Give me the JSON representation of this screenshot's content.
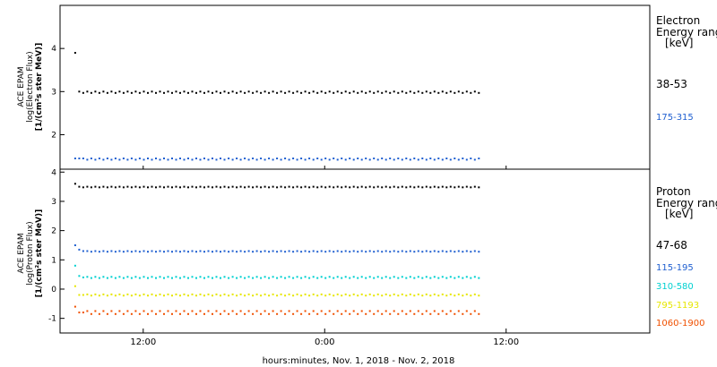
{
  "chart_data": [
    {
      "type": "scatter",
      "panel": "electron",
      "ylabel_lines": [
        "ACE EPAM",
        "log(Electron Flux)",
        "[1/(cm²s ster MeV)]"
      ],
      "ylim": [
        1.2,
        5.0
      ],
      "yticks": [
        "2",
        "3",
        "4"
      ],
      "legend_title_lines": [
        "Electron",
        "Energy range",
        "[keV]"
      ],
      "series": [
        {
          "name": "38-53",
          "color": "#000000",
          "values": [
            3.9,
            3.0,
            2.97,
            3.0,
            2.97,
            3.0,
            2.97,
            3.0,
            2.97,
            3.0,
            2.97,
            3.0,
            2.97,
            3.0,
            2.97,
            3.0,
            2.97,
            3.0,
            2.97,
            3.0,
            2.97,
            3.0,
            2.97,
            3.0,
            2.97,
            3.0,
            2.97,
            3.0,
            2.97,
            3.0,
            2.97,
            3.0,
            2.97,
            3.0,
            2.97,
            3.0,
            2.97,
            3.0,
            2.97,
            3.0,
            2.97,
            3.0,
            2.97,
            3.0,
            2.97,
            3.0,
            2.97,
            3.0,
            2.97,
            3.0,
            2.97,
            3.0,
            2.97,
            3.0,
            2.97,
            3.0,
            2.97,
            3.0,
            2.97,
            3.0,
            2.97,
            3.0,
            2.97,
            3.0,
            2.97,
            3.0,
            2.97,
            3.0,
            2.97,
            3.0,
            2.97,
            3.0,
            2.97,
            3.0,
            2.97,
            3.0,
            2.97,
            3.0,
            2.97,
            3.0,
            2.97,
            3.0,
            2.97,
            3.0,
            2.97,
            3.0,
            2.97,
            3.0,
            2.97,
            3.0,
            2.97,
            3.0,
            2.97,
            3.0,
            2.97,
            3.0,
            2.97,
            3.0,
            2.97,
            3.0,
            2.97
          ]
        },
        {
          "name": "175-315",
          "color": "#1f5fd0",
          "values": [
            1.45,
            1.45,
            1.45,
            1.42,
            1.45,
            1.42,
            1.45,
            1.42,
            1.45,
            1.42,
            1.45,
            1.42,
            1.45,
            1.42,
            1.45,
            1.42,
            1.45,
            1.42,
            1.45,
            1.42,
            1.45,
            1.42,
            1.45,
            1.42,
            1.45,
            1.42,
            1.45,
            1.42,
            1.45,
            1.42,
            1.45,
            1.42,
            1.45,
            1.42,
            1.45,
            1.42,
            1.45,
            1.42,
            1.45,
            1.42,
            1.45,
            1.42,
            1.45,
            1.42,
            1.45,
            1.42,
            1.45,
            1.42,
            1.45,
            1.42,
            1.45,
            1.42,
            1.45,
            1.42,
            1.45,
            1.42,
            1.45,
            1.42,
            1.45,
            1.42,
            1.45,
            1.42,
            1.45,
            1.42,
            1.45,
            1.42,
            1.45,
            1.42,
            1.45,
            1.42,
            1.45,
            1.42,
            1.45,
            1.42,
            1.45,
            1.42,
            1.45,
            1.42,
            1.45,
            1.42,
            1.45,
            1.42,
            1.45,
            1.42,
            1.45,
            1.42,
            1.45,
            1.42,
            1.45,
            1.42,
            1.45,
            1.42,
            1.45,
            1.42,
            1.45,
            1.42,
            1.45,
            1.42,
            1.45,
            1.42,
            1.45
          ]
        }
      ]
    },
    {
      "type": "scatter",
      "panel": "proton",
      "ylabel_lines": [
        "ACE EPAM",
        "log(Proton Flux)",
        "[1/(cm²s ster MeV)]"
      ],
      "ylim": [
        -1.5,
        4.1
      ],
      "yticks": [
        "-1",
        "0",
        "1",
        "2",
        "3",
        "4"
      ],
      "legend_title_lines": [
        "Proton",
        "Energy range",
        "[keV]"
      ],
      "series": [
        {
          "name": "47-68",
          "color": "#000000",
          "values": [
            3.6,
            3.5,
            3.48,
            3.5,
            3.48,
            3.5,
            3.48,
            3.5,
            3.48,
            3.5,
            3.48,
            3.5,
            3.48,
            3.5,
            3.48,
            3.5,
            3.48,
            3.5,
            3.48,
            3.5,
            3.48,
            3.5,
            3.48,
            3.5,
            3.48,
            3.5,
            3.48,
            3.5,
            3.48,
            3.5,
            3.48,
            3.5,
            3.48,
            3.5,
            3.48,
            3.5,
            3.48,
            3.5,
            3.48,
            3.5,
            3.48,
            3.5,
            3.48,
            3.5,
            3.48,
            3.5,
            3.48,
            3.5,
            3.48,
            3.5,
            3.48,
            3.5,
            3.48,
            3.5,
            3.48,
            3.5,
            3.48,
            3.5,
            3.48,
            3.5,
            3.48,
            3.5,
            3.48,
            3.5,
            3.48,
            3.5,
            3.48,
            3.5,
            3.48,
            3.5,
            3.48,
            3.5,
            3.48,
            3.5,
            3.48,
            3.5,
            3.48,
            3.5,
            3.48,
            3.5,
            3.48,
            3.5,
            3.48,
            3.5,
            3.48,
            3.5,
            3.48,
            3.5,
            3.48,
            3.5,
            3.48,
            3.5,
            3.48,
            3.5,
            3.48,
            3.5,
            3.48,
            3.5,
            3.48,
            3.5,
            3.48
          ]
        },
        {
          "name": "115-195",
          "color": "#1f5fd0",
          "values": [
            1.5,
            1.35,
            1.3,
            1.3,
            1.28,
            1.3,
            1.28,
            1.3,
            1.28,
            1.3,
            1.28,
            1.3,
            1.28,
            1.3,
            1.28,
            1.3,
            1.28,
            1.3,
            1.28,
            1.3,
            1.28,
            1.3,
            1.28,
            1.3,
            1.28,
            1.3,
            1.28,
            1.3,
            1.28,
            1.3,
            1.28,
            1.3,
            1.28,
            1.3,
            1.28,
            1.3,
            1.28,
            1.3,
            1.28,
            1.3,
            1.28,
            1.3,
            1.28,
            1.3,
            1.28,
            1.3,
            1.28,
            1.3,
            1.28,
            1.3,
            1.28,
            1.3,
            1.28,
            1.3,
            1.28,
            1.3,
            1.28,
            1.3,
            1.28,
            1.3,
            1.28,
            1.3,
            1.28,
            1.3,
            1.28,
            1.3,
            1.28,
            1.3,
            1.28,
            1.3,
            1.28,
            1.3,
            1.28,
            1.3,
            1.28,
            1.3,
            1.28,
            1.3,
            1.28,
            1.3,
            1.28,
            1.3,
            1.28,
            1.3,
            1.28,
            1.3,
            1.28,
            1.3,
            1.28,
            1.3,
            1.28,
            1.3,
            1.28,
            1.3,
            1.28,
            1.3,
            1.28,
            1.3,
            1.28,
            1.3,
            1.28
          ]
        },
        {
          "name": "310-580",
          "color": "#00d0d0",
          "values": [
            0.8,
            0.45,
            0.4,
            0.42,
            0.38,
            0.42,
            0.38,
            0.42,
            0.38,
            0.42,
            0.38,
            0.42,
            0.38,
            0.42,
            0.38,
            0.42,
            0.38,
            0.42,
            0.38,
            0.42,
            0.38,
            0.42,
            0.38,
            0.42,
            0.38,
            0.42,
            0.38,
            0.42,
            0.38,
            0.42,
            0.38,
            0.42,
            0.38,
            0.42,
            0.38,
            0.42,
            0.38,
            0.42,
            0.38,
            0.42,
            0.38,
            0.42,
            0.38,
            0.42,
            0.38,
            0.42,
            0.38,
            0.42,
            0.38,
            0.42,
            0.38,
            0.42,
            0.38,
            0.42,
            0.38,
            0.42,
            0.38,
            0.42,
            0.38,
            0.42,
            0.38,
            0.42,
            0.38,
            0.42,
            0.38,
            0.42,
            0.38,
            0.42,
            0.38,
            0.42,
            0.38,
            0.42,
            0.38,
            0.42,
            0.38,
            0.42,
            0.38,
            0.42,
            0.38,
            0.42,
            0.38,
            0.42,
            0.38,
            0.42,
            0.38,
            0.42,
            0.38,
            0.42,
            0.38,
            0.42,
            0.38,
            0.42,
            0.38,
            0.42,
            0.38,
            0.42,
            0.38,
            0.42,
            0.38,
            0.42,
            0.38
          ]
        },
        {
          "name": "795-1193",
          "color": "#e6e600",
          "values": [
            0.1,
            -0.2,
            -0.2,
            -0.18,
            -0.22,
            -0.18,
            -0.22,
            -0.18,
            -0.22,
            -0.18,
            -0.22,
            -0.18,
            -0.22,
            -0.18,
            -0.22,
            -0.18,
            -0.22,
            -0.18,
            -0.22,
            -0.18,
            -0.22,
            -0.18,
            -0.22,
            -0.18,
            -0.22,
            -0.18,
            -0.22,
            -0.18,
            -0.22,
            -0.18,
            -0.22,
            -0.18,
            -0.22,
            -0.18,
            -0.22,
            -0.18,
            -0.22,
            -0.18,
            -0.22,
            -0.18,
            -0.22,
            -0.18,
            -0.22,
            -0.18,
            -0.22,
            -0.18,
            -0.22,
            -0.18,
            -0.22,
            -0.18,
            -0.22,
            -0.18,
            -0.22,
            -0.18,
            -0.22,
            -0.18,
            -0.22,
            -0.18,
            -0.22,
            -0.18,
            -0.22,
            -0.18,
            -0.22,
            -0.18,
            -0.22,
            -0.18,
            -0.22,
            -0.18,
            -0.22,
            -0.18,
            -0.22,
            -0.18,
            -0.22,
            -0.18,
            -0.22,
            -0.18,
            -0.22,
            -0.18,
            -0.22,
            -0.18,
            -0.22,
            -0.18,
            -0.22,
            -0.18,
            -0.22,
            -0.18,
            -0.22,
            -0.18,
            -0.22,
            -0.18,
            -0.22,
            -0.18,
            -0.22,
            -0.18,
            -0.22,
            -0.18,
            -0.22,
            -0.18,
            -0.22,
            -0.18,
            -0.22
          ]
        },
        {
          "name": "1060-1900",
          "color": "#f05000",
          "values": [
            -0.6,
            -0.8,
            -0.8,
            -0.75,
            -0.85,
            -0.75,
            -0.85,
            -0.75,
            -0.85,
            -0.75,
            -0.85,
            -0.75,
            -0.85,
            -0.75,
            -0.85,
            -0.75,
            -0.85,
            -0.75,
            -0.85,
            -0.75,
            -0.85,
            -0.75,
            -0.85,
            -0.75,
            -0.85,
            -0.75,
            -0.85,
            -0.75,
            -0.85,
            -0.75,
            -0.85,
            -0.75,
            -0.85,
            -0.75,
            -0.85,
            -0.75,
            -0.85,
            -0.75,
            -0.85,
            -0.75,
            -0.85,
            -0.75,
            -0.85,
            -0.75,
            -0.85,
            -0.75,
            -0.85,
            -0.75,
            -0.85,
            -0.75,
            -0.85,
            -0.75,
            -0.85,
            -0.75,
            -0.85,
            -0.75,
            -0.85,
            -0.75,
            -0.85,
            -0.75,
            -0.85,
            -0.75,
            -0.85,
            -0.75,
            -0.85,
            -0.75,
            -0.85,
            -0.75,
            -0.85,
            -0.75,
            -0.85,
            -0.75,
            -0.85,
            -0.75,
            -0.85,
            -0.75,
            -0.85,
            -0.75,
            -0.85,
            -0.75,
            -0.85,
            -0.75,
            -0.85,
            -0.75,
            -0.85,
            -0.75,
            -0.85,
            -0.75,
            -0.85,
            -0.75,
            -0.85,
            -0.75,
            -0.85,
            -0.75,
            -0.85,
            -0.75,
            -0.85,
            -0.75,
            -0.85,
            -0.75,
            -0.85
          ]
        }
      ]
    }
  ],
  "x_axis": {
    "xlim_hours": [
      6.5,
      45.5
    ],
    "data_hours": [
      7.5,
      34.2
    ],
    "ticks": [
      {
        "hour": 12,
        "label": "12:00"
      },
      {
        "hour": 24,
        "label": "0:00"
      },
      {
        "hour": 36,
        "label": "12:00"
      }
    ],
    "xlabel": "hours:minutes, Nov.  1, 2018 - Nov.  2, 2018"
  }
}
